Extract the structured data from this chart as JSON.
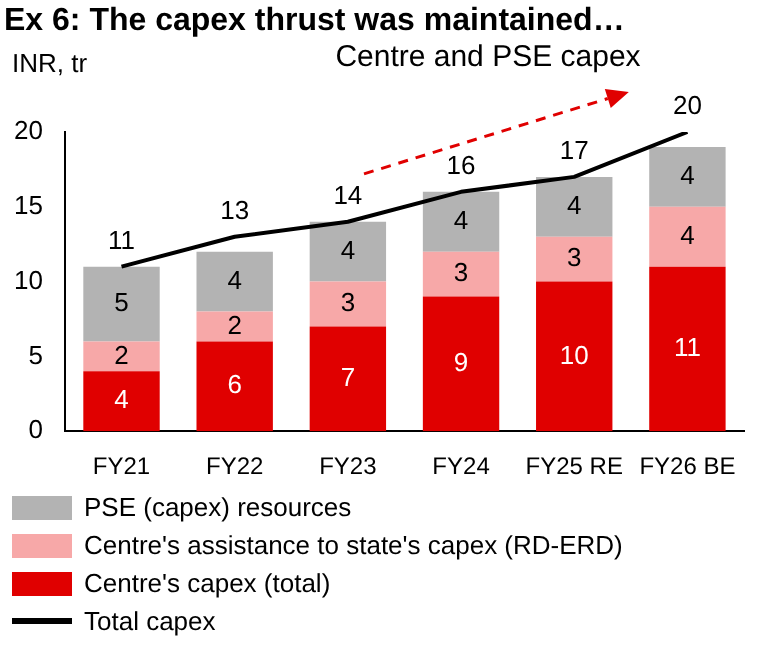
{
  "chart_data": {
    "type": "bar",
    "title": "Ex 6: The capex thrust was maintained…",
    "ylabel": "INR, tr",
    "categories": [
      "FY21",
      "FY22",
      "FY23",
      "FY24",
      "FY25 RE",
      "FY26 BE"
    ],
    "stacked": true,
    "data_labels": true,
    "legend": "bottom",
    "ylim": [
      0,
      20
    ],
    "yticks": [
      0,
      5,
      10,
      15,
      20
    ],
    "annotations": [
      "Centre and PSE capex"
    ],
    "series": [
      {
        "name": "Centre's capex (total)",
        "color": "#e00000",
        "values": [
          4,
          6,
          7,
          9,
          10,
          11
        ]
      },
      {
        "name": "Centre's assistance to state's capex (RD-ERD)",
        "color": "#f7a8a8",
        "values": [
          2,
          2,
          3,
          3,
          3,
          4
        ]
      },
      {
        "name": "PSE (capex) resources",
        "color": "#b3b3b3",
        "values": [
          5,
          4,
          4,
          4,
          4,
          4
        ]
      },
      {
        "name": "Total capex",
        "type": "line",
        "color": "#000000",
        "values": [
          11,
          13,
          14,
          16,
          17,
          20
        ]
      }
    ]
  }
}
